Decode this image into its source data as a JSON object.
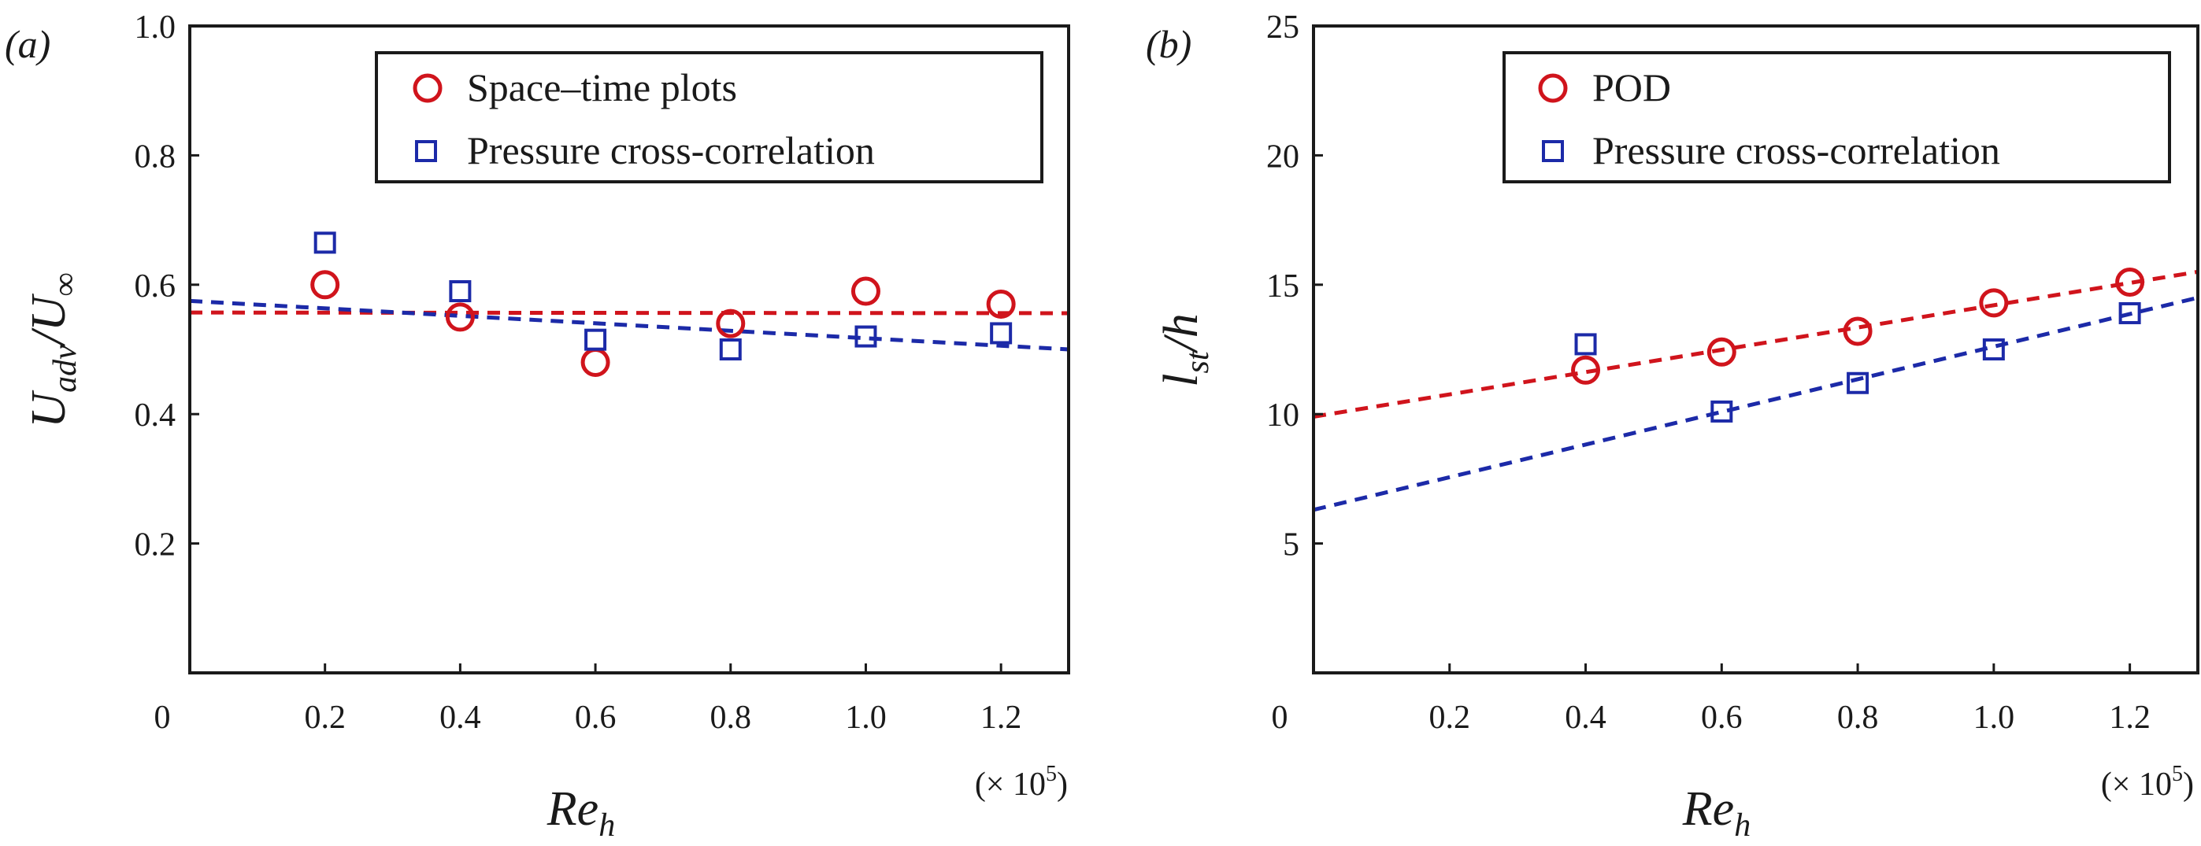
{
  "chart_data": [
    {
      "type": "scatter",
      "panel_label": "(a)",
      "xlabel": "Re",
      "xlabel_sub": "h",
      "x_multiplier": "(× 10",
      "x_multiplier_exp": "5",
      "x_multiplier_close": ")",
      "ylabel": "U",
      "ylabel_sub": "adv",
      "ylabel_slash": "/U",
      "ylabel_inf": "∞",
      "xlim": [
        0,
        1.3
      ],
      "ylim": [
        0,
        1.0
      ],
      "xticks": [
        0.2,
        0.4,
        0.6,
        0.8,
        1.0,
        1.2
      ],
      "xtick_labels": [
        "0.2",
        "0.4",
        "0.6",
        "0.8",
        "1.0",
        "1.2"
      ],
      "yticks": [
        0.2,
        0.4,
        0.6,
        0.8,
        1.0
      ],
      "ytick_labels": [
        "0.2",
        "0.4",
        "0.6",
        "0.8",
        "1.0"
      ],
      "origin_label": "0",
      "legend_position": "top-right",
      "series": [
        {
          "name": "Space–time plots",
          "marker": "circle",
          "color": "#d0141c",
          "x": [
            0.2,
            0.4,
            0.6,
            0.8,
            1.0,
            1.2
          ],
          "y": [
            0.6,
            0.55,
            0.48,
            0.54,
            0.59,
            0.57
          ],
          "fit": {
            "x": [
              0,
              1.3
            ],
            "y": [
              0.557,
              0.556
            ]
          }
        },
        {
          "name": "Pressure cross-correlation",
          "marker": "square",
          "color": "#1c2aa8",
          "x": [
            0.2,
            0.4,
            0.6,
            0.8,
            1.0,
            1.2
          ],
          "y": [
            0.665,
            0.59,
            0.515,
            0.5,
            0.52,
            0.525
          ],
          "fit": {
            "x": [
              0,
              1.3
            ],
            "y": [
              0.575,
              0.5
            ]
          }
        }
      ]
    },
    {
      "type": "scatter",
      "panel_label": "(b)",
      "xlabel": "Re",
      "xlabel_sub": "h",
      "x_multiplier": "(× 10",
      "x_multiplier_exp": "5",
      "x_multiplier_close": ")",
      "ylabel": "l",
      "ylabel_sub": "st",
      "ylabel_slash": "/h",
      "ylabel_inf": "",
      "xlim": [
        0,
        1.3
      ],
      "ylim": [
        0,
        25
      ],
      "xticks": [
        0.2,
        0.4,
        0.6,
        0.8,
        1.0,
        1.2
      ],
      "xtick_labels": [
        "0.2",
        "0.4",
        "0.6",
        "0.8",
        "1.0",
        "1.2"
      ],
      "yticks": [
        5,
        10,
        15,
        20,
        25
      ],
      "ytick_labels": [
        "5",
        "10",
        "15",
        "20",
        "25"
      ],
      "origin_label": "0",
      "legend_position": "top-right",
      "series": [
        {
          "name": "POD",
          "marker": "circle",
          "color": "#d0141c",
          "x": [
            0.4,
            0.6,
            0.8,
            1.0,
            1.2
          ],
          "y": [
            11.7,
            12.4,
            13.2,
            14.3,
            15.1
          ],
          "fit": {
            "x": [
              0,
              1.3
            ],
            "y": [
              9.9,
              15.5
            ]
          }
        },
        {
          "name": "Pressure cross-correlation",
          "marker": "square",
          "color": "#1c2aa8",
          "x": [
            0.4,
            0.6,
            0.8,
            1.0,
            1.2
          ],
          "y": [
            12.7,
            10.1,
            11.2,
            12.5,
            13.9
          ],
          "fit": {
            "x": [
              0,
              1.3
            ],
            "y": [
              6.3,
              14.5
            ]
          }
        }
      ]
    }
  ]
}
